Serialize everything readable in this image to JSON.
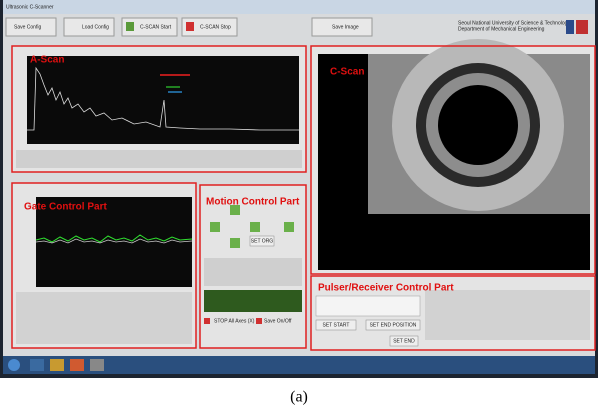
{
  "window": {
    "title": "Ultrasonic C-Scanner"
  },
  "toolbar": {
    "buttons": [
      "Save Config",
      "Load Config",
      "C-SCAN Start",
      "C-SCAN Stop",
      "Save Image"
    ],
    "institution": [
      "Seoul National University of Science & Technology",
      "Department of Mechanical Engineering"
    ]
  },
  "panels": {
    "a_scan": "A-Scan",
    "c_scan": "C-Scan",
    "gate": "Gate Control Part",
    "motion": "Motion Control Part",
    "pulser": "Pulser/Receiver Control Part"
  },
  "motion": {
    "buttons": [
      "SET ORG",
      "STOP All Axes (X)",
      "Save On/Off"
    ]
  },
  "pulser": {
    "buttons": [
      "SET START",
      "SET END POSITION",
      "SET END"
    ]
  },
  "caption": "(a)"
}
